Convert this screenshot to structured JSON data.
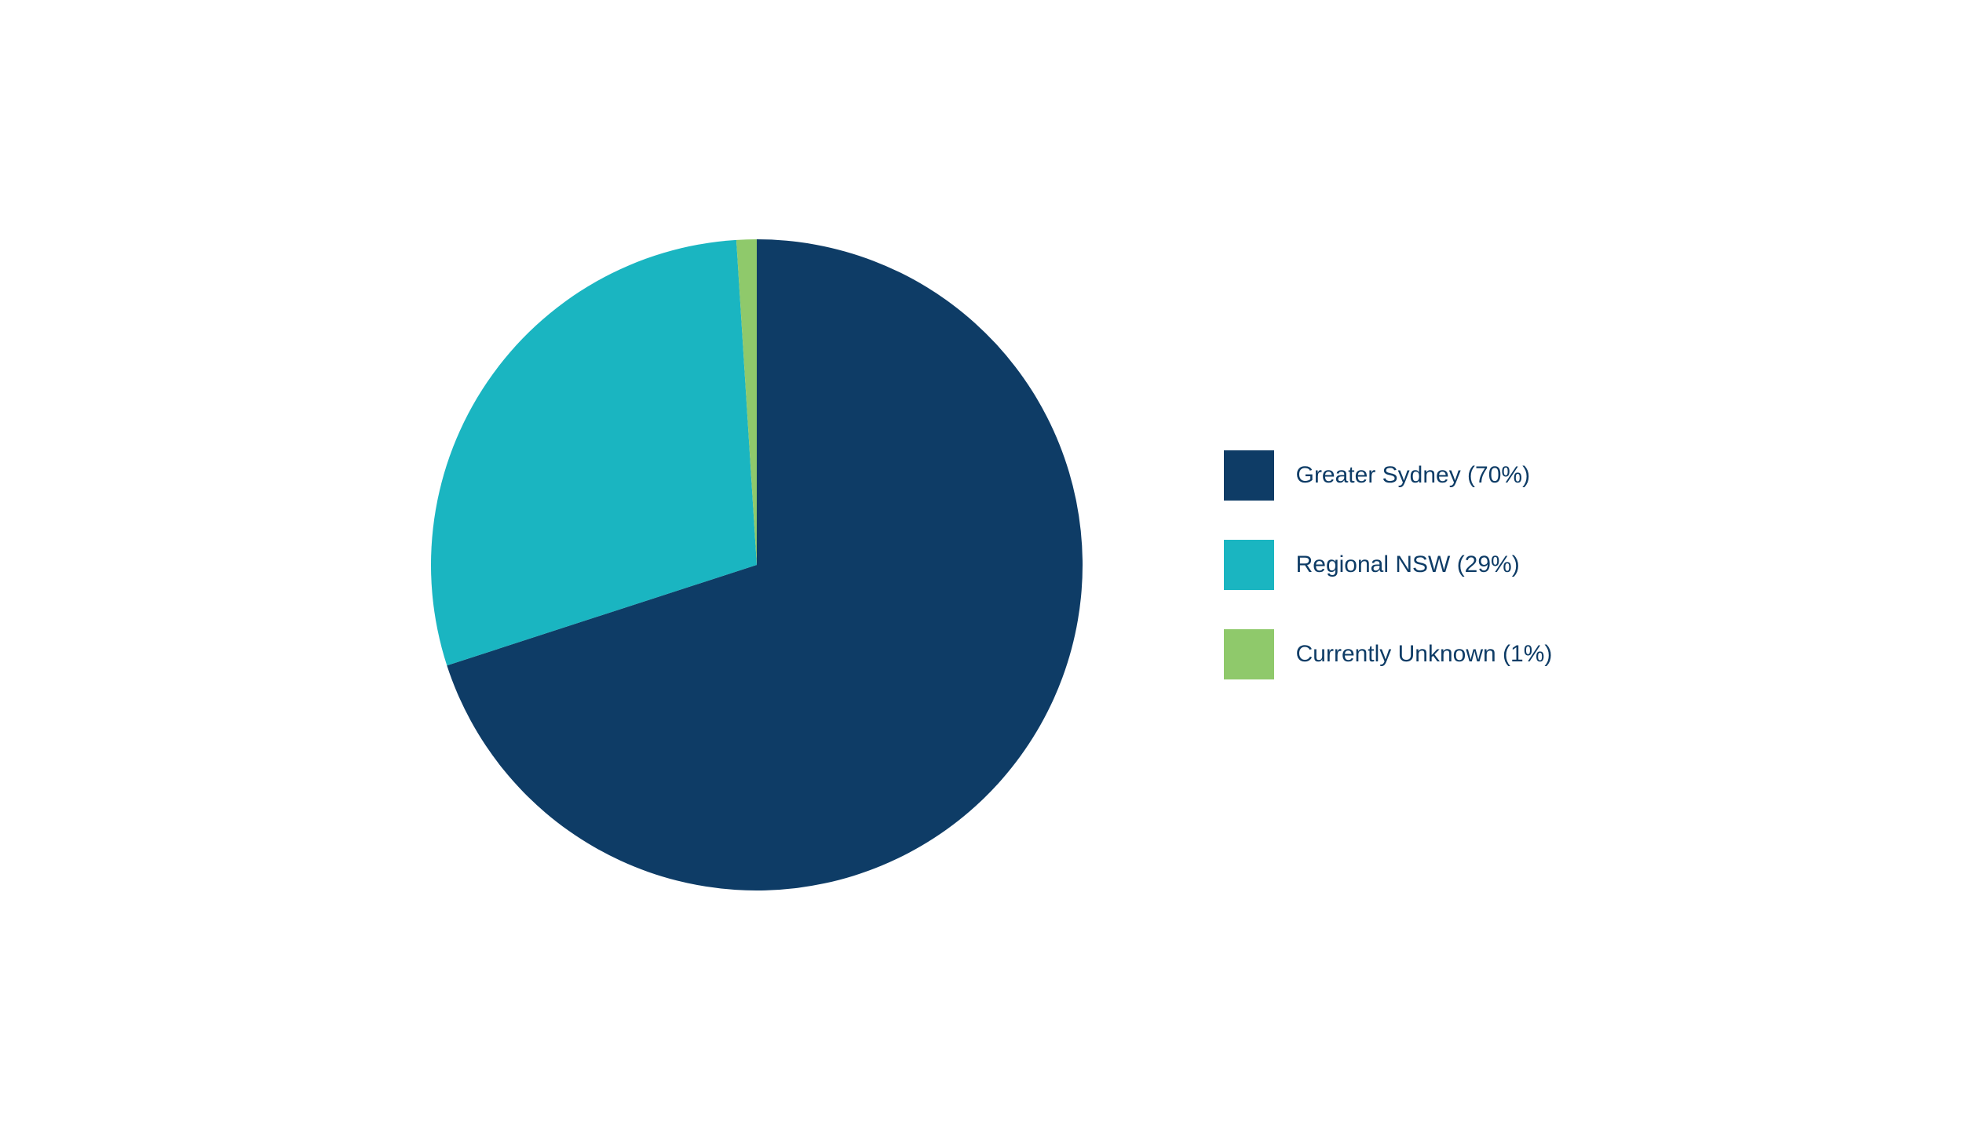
{
  "chart": {
    "type": "pie",
    "background_color": "#ffffff",
    "radius": 415,
    "slices": [
      {
        "label": "Greater Sydney (70%)",
        "value": 70,
        "color": "#0e3c66"
      },
      {
        "label": "Regional NSW (29%)",
        "value": 29,
        "color": "#1ab5c1"
      },
      {
        "label": "Currently Unknown (1%)",
        "value": 1,
        "color": "#8fc96b"
      }
    ],
    "legend": {
      "position": "right",
      "swatch_size": 64,
      "gap": 50,
      "label_fontsize": 30,
      "label_color": "#0e3c66"
    }
  }
}
